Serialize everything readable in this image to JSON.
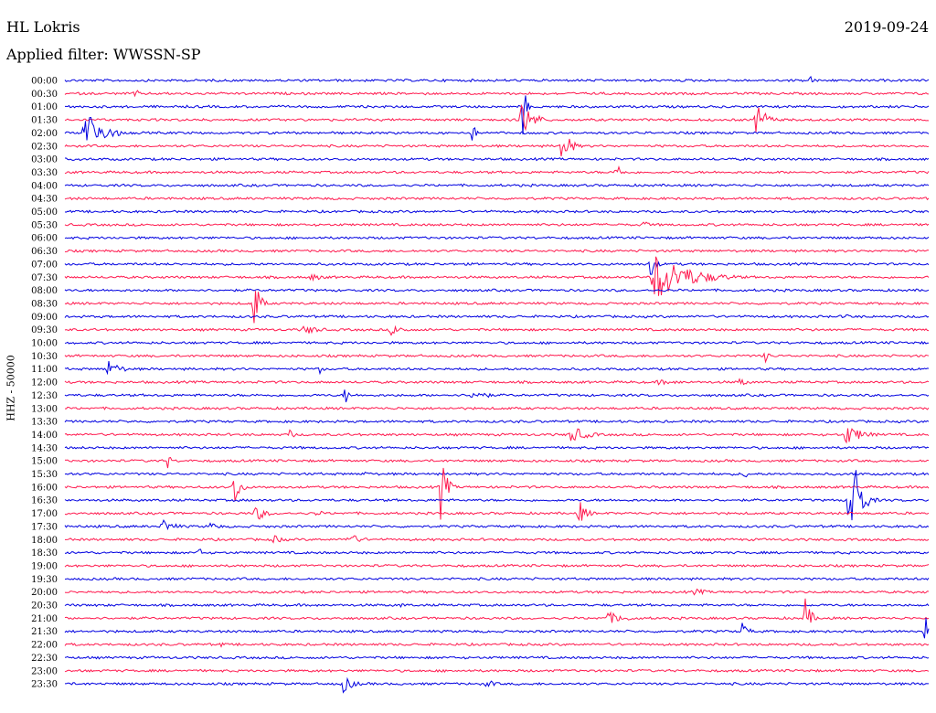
{
  "header": {
    "station": "HL Lokris",
    "date": "2019-09-24",
    "filter": "Applied filter: WWSSN-SP"
  },
  "channel_label": "HHZ - 50000",
  "colors": {
    "trace_a": "#0000e0",
    "trace_b": "#ff1a4f"
  },
  "rows": [
    {
      "label": "00:00",
      "events": [
        [
          885,
          10,
          6
        ]
      ]
    },
    {
      "label": "00:30",
      "events": [
        [
          148,
          8,
          5
        ]
      ]
    },
    {
      "label": "01:00",
      "events": [
        [
          572,
          40,
          5
        ]
      ]
    },
    {
      "label": "01:30",
      "events": [
        [
          570,
          22,
          22
        ],
        [
          828,
          22,
          16
        ]
      ]
    },
    {
      "label": "02:00",
      "events": [
        [
          92,
          30,
          30
        ],
        [
          517,
          10,
          8
        ]
      ]
    },
    {
      "label": "02:30",
      "events": [
        [
          615,
          24,
          14
        ]
      ]
    },
    {
      "label": "03:00",
      "events": []
    },
    {
      "label": "03:30",
      "events": [
        [
          675,
          14,
          8
        ]
      ]
    },
    {
      "label": "04:00",
      "events": []
    },
    {
      "label": "04:30",
      "events": []
    },
    {
      "label": "05:00",
      "events": []
    },
    {
      "label": "05:30",
      "events": [
        [
          705,
          8,
          6
        ]
      ]
    },
    {
      "label": "06:00",
      "events": []
    },
    {
      "label": "06:30",
      "events": []
    },
    {
      "label": "07:00",
      "events": [
        [
          712,
          14,
          10
        ]
      ]
    },
    {
      "label": "07:30",
      "events": [
        [
          715,
          30,
          60
        ],
        [
          340,
          4,
          30
        ]
      ]
    },
    {
      "label": "08:00",
      "events": []
    },
    {
      "label": "08:30",
      "events": [
        [
          277,
          36,
          10
        ]
      ]
    },
    {
      "label": "09:00",
      "events": [
        [
          925,
          8,
          6
        ]
      ]
    },
    {
      "label": "09:30",
      "events": [
        [
          333,
          6,
          30
        ],
        [
          428,
          6,
          30
        ]
      ]
    },
    {
      "label": "10:00",
      "events": []
    },
    {
      "label": "10:30",
      "events": [
        [
          838,
          8,
          6
        ]
      ]
    },
    {
      "label": "11:00",
      "events": [
        [
          118,
          10,
          24
        ],
        [
          350,
          6,
          6
        ]
      ]
    },
    {
      "label": "12:00",
      "events": [
        [
          810,
          8,
          10
        ],
        [
          720,
          3,
          60
        ]
      ]
    },
    {
      "label": "12:30",
      "events": [
        [
          378,
          12,
          6
        ],
        [
          517,
          8,
          24
        ]
      ]
    },
    {
      "label": "13:00",
      "events": []
    },
    {
      "label": "13:30",
      "events": []
    },
    {
      "label": "14:00",
      "events": [
        [
          318,
          8,
          6
        ],
        [
          625,
          10,
          30
        ],
        [
          925,
          12,
          30
        ]
      ]
    },
    {
      "label": "14:30",
      "events": []
    },
    {
      "label": "15:00",
      "events": [
        [
          184,
          10,
          6
        ]
      ]
    },
    {
      "label": "15:30",
      "events": [
        [
          400,
          6,
          5
        ],
        [
          815,
          6,
          5
        ]
      ]
    },
    {
      "label": "16:00",
      "events": [
        [
          256,
          26,
          10
        ],
        [
          482,
          40,
          10
        ]
      ]
    },
    {
      "label": "16:30",
      "events": [
        [
          930,
          90,
          14
        ]
      ]
    },
    {
      "label": "17:00",
      "events": [
        [
          280,
          10,
          18
        ],
        [
          634,
          14,
          14
        ],
        [
          347,
          5,
          10
        ]
      ]
    },
    {
      "label": "17:30",
      "events": [
        [
          178,
          8,
          24
        ],
        [
          230,
          5,
          20
        ]
      ]
    },
    {
      "label": "18:00",
      "events": [
        [
          380,
          8,
          24
        ],
        [
          300,
          5,
          20
        ]
      ]
    },
    {
      "label": "18:30",
      "events": [
        [
          218,
          6,
          6
        ]
      ]
    },
    {
      "label": "19:00",
      "events": []
    },
    {
      "label": "19:30",
      "events": []
    },
    {
      "label": "20:00",
      "events": [
        [
          760,
          4,
          30
        ]
      ]
    },
    {
      "label": "20:30",
      "events": [
        [
          440,
          5,
          4
        ]
      ]
    },
    {
      "label": "21:00",
      "events": [
        [
          665,
          7,
          36
        ],
        [
          881,
          24,
          10
        ]
      ]
    },
    {
      "label": "21:30",
      "events": [
        [
          812,
          10,
          12
        ],
        [
          1012,
          20,
          6
        ]
      ]
    },
    {
      "label": "22:00",
      "events": [
        [
          243,
          6,
          4
        ]
      ]
    },
    {
      "label": "22:30",
      "events": []
    },
    {
      "label": "23:00",
      "events": []
    },
    {
      "label": "23:30",
      "events": [
        [
          375,
          10,
          20
        ],
        [
          533,
          6,
          14
        ]
      ]
    }
  ]
}
